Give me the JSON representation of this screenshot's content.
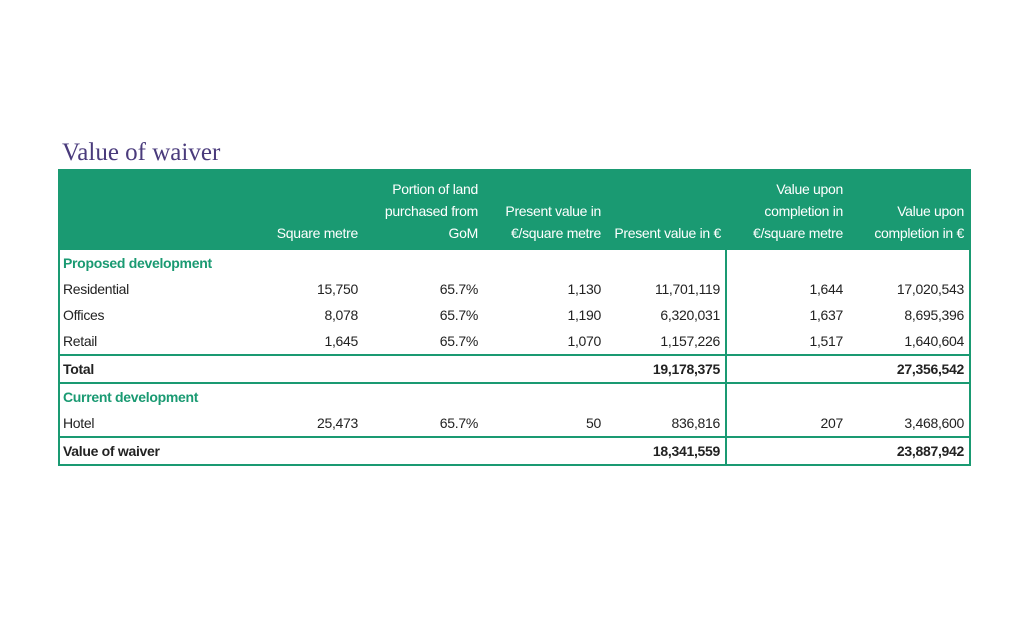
{
  "title": "Value of waiver",
  "headers": [
    "",
    "Square metre",
    "Portion of land purchased from GoM",
    "Present value in €/square metre",
    "Present value in €",
    "Value upon completion in €/square metre",
    "Value upon completion in €"
  ],
  "sections": {
    "proposed": "Proposed development",
    "current": "Current development"
  },
  "rows": {
    "residential": [
      "Residential",
      "15,750",
      "65.7%",
      "1,130",
      "11,701,119",
      "1,644",
      "17,020,543"
    ],
    "offices": [
      "Offices",
      "8,078",
      "65.7%",
      "1,190",
      "6,320,031",
      "1,637",
      "8,695,396"
    ],
    "retail": [
      "Retail",
      "1,645",
      "65.7%",
      "1,070",
      "1,157,226",
      "1,517",
      "1,640,604"
    ],
    "total": [
      "Total",
      "",
      "",
      "",
      "19,178,375",
      "",
      "27,356,542"
    ],
    "hotel": [
      "Hotel",
      "25,473",
      "65.7%",
      "50",
      "836,816",
      "207",
      "3,468,600"
    ],
    "waiver": [
      "Value of waiver",
      "",
      "",
      "",
      "18,341,559",
      "",
      "23,887,942"
    ]
  },
  "colors": {
    "accent": "#1a9a72",
    "title": "#4a3b7c"
  }
}
